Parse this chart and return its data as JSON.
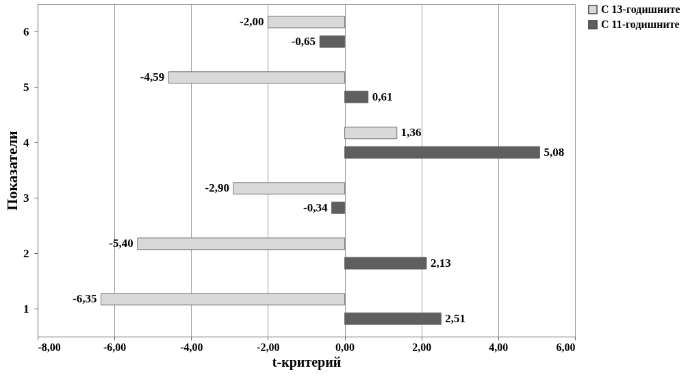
{
  "chart_data": {
    "type": "bar",
    "orientation": "horizontal",
    "xlabel": "t-критерий",
    "ylabel": "Показатели",
    "categories": [
      "6",
      "5",
      "4",
      "3",
      "2",
      "1"
    ],
    "series": [
      {
        "name": "С 13-годишните",
        "color": "#d9d9d9",
        "values": [
          -2.0,
          -4.59,
          1.36,
          -2.9,
          -5.4,
          -6.35
        ],
        "value_labels": [
          "-2,00",
          "-4,59",
          "1,36",
          "-2,90",
          "-5,40",
          "-6,35"
        ]
      },
      {
        "name": "С 11-годишните",
        "color": "#5f5f5f",
        "values": [
          -0.65,
          0.61,
          5.08,
          -0.34,
          2.13,
          2.51
        ],
        "value_labels": [
          "-0,65",
          "0,61",
          "5,08",
          "-0,34",
          "2,13",
          "2,51"
        ]
      }
    ],
    "xlim": [
      -8,
      6
    ],
    "xticks": [
      {
        "value": -8,
        "label": "-8,00"
      },
      {
        "value": -6,
        "label": "-6,00"
      },
      {
        "value": -4,
        "label": "-4,00"
      },
      {
        "value": -2,
        "label": "-2,00"
      },
      {
        "value": 0,
        "label": "0,00"
      },
      {
        "value": 2,
        "label": "2,00"
      },
      {
        "value": 4,
        "label": "4,00"
      },
      {
        "value": 6,
        "label": "6,00"
      }
    ],
    "grid": "x",
    "legend": "right"
  }
}
